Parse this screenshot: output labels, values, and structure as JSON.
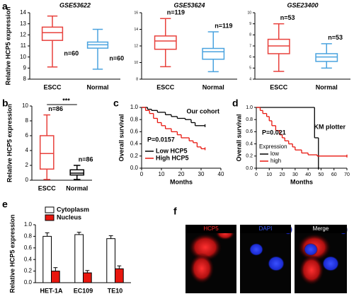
{
  "chart_data": [
    {
      "panel": "a",
      "type": "box",
      "title": "GSE53622",
      "ylabel": "Relative HCP5 expression",
      "categories": [
        "ESCC",
        "Normal"
      ],
      "colors": [
        "#e8413c",
        "#4aa3df"
      ],
      "boxes": [
        {
          "min": 9.1,
          "q1": 11.5,
          "median": 12.2,
          "q3": 12.7,
          "max": 13.7
        },
        {
          "min": 8.9,
          "q1": 10.8,
          "median": 11.1,
          "q3": 11.35,
          "max": 12.5
        }
      ],
      "n_labels": [
        "n=60",
        "n=60"
      ],
      "ylim": [
        8,
        14
      ],
      "yticks": [
        8,
        9,
        10,
        11,
        12,
        13,
        14
      ]
    },
    {
      "type": "box",
      "title": "GSE53624",
      "categories": [
        "ESCC",
        "Normal"
      ],
      "colors": [
        "#e8413c",
        "#4aa3df"
      ],
      "boxes": [
        {
          "min": 9.5,
          "q1": 11.6,
          "median": 12.6,
          "q3": 13.2,
          "max": 15.3
        },
        {
          "min": 8.9,
          "q1": 10.4,
          "median": 11.3,
          "q3": 11.7,
          "max": 13.7
        }
      ],
      "n_labels": [
        "n=119",
        "n=119"
      ],
      "ylim": [
        8,
        16
      ],
      "yticks": [
        8,
        10,
        12,
        14,
        16
      ]
    },
    {
      "type": "box",
      "title": "GSE23400",
      "categories": [
        "ESCC",
        "Normal"
      ],
      "colors": [
        "#e8413c",
        "#4aa3df"
      ],
      "boxes": [
        {
          "min": 4.7,
          "q1": 6.3,
          "median": 7.0,
          "q3": 7.6,
          "max": 9.0
        },
        {
          "min": 5.0,
          "q1": 5.6,
          "median": 6.0,
          "q3": 6.3,
          "max": 7.2
        }
      ],
      "n_labels": [
        "n=53",
        "n=53"
      ],
      "ylim": [
        4,
        10
      ],
      "yticks": [
        4,
        5,
        6,
        7,
        8,
        9,
        10
      ]
    },
    {
      "panel": "b",
      "type": "box",
      "ylabel": "Relative HCP5 expression",
      "categories": [
        "ESCC",
        "Normal"
      ],
      "colors": [
        "#e8413c",
        "#000000"
      ],
      "boxes": [
        {
          "min": 0.1,
          "q1": 1.5,
          "median": 3.6,
          "q3": 6.0,
          "max": 8.8
        },
        {
          "min": 0.1,
          "q1": 0.7,
          "median": 0.95,
          "q3": 1.4,
          "max": 2.0
        }
      ],
      "n_labels": [
        "n=86",
        "n=86"
      ],
      "significance": "***",
      "ylim": [
        0,
        10
      ],
      "yticks": [
        0,
        2,
        4,
        6,
        8,
        10
      ]
    },
    {
      "panel": "c",
      "type": "km",
      "ylabel": "Overall survival",
      "xlabel": "Months",
      "annotations": [
        "Our cohort",
        "P=0.0157"
      ],
      "series": [
        {
          "name": "Low HCP5",
          "color": "#000000",
          "x": [
            0,
            3,
            5,
            8,
            12,
            15,
            18,
            22,
            25,
            27,
            32
          ],
          "values": [
            1,
            0.97,
            0.95,
            0.92,
            0.88,
            0.85,
            0.82,
            0.8,
            0.75,
            0.7,
            0.7
          ]
        },
        {
          "name": "High HCP5",
          "color": "#e8170f",
          "x": [
            0,
            2,
            4,
            6,
            8,
            10,
            12,
            15,
            18,
            20,
            24,
            26,
            28,
            30,
            32
          ],
          "values": [
            1,
            0.95,
            0.9,
            0.82,
            0.75,
            0.7,
            0.65,
            0.6,
            0.55,
            0.5,
            0.45,
            0.42,
            0.35,
            0.32,
            0.32
          ]
        }
      ],
      "xlim": [
        0,
        40
      ],
      "xticks": [
        0,
        10,
        20,
        30,
        40
      ],
      "ylim": [
        0,
        1
      ],
      "yticks": [
        {
          "value": 0,
          "label": "0.0"
        },
        0.2,
        0.4,
        0.6,
        0.8,
        {
          "value": 1,
          "label": "1.0"
        }
      ]
    },
    {
      "panel": "d",
      "type": "km",
      "ylabel": "Overall survival",
      "xlabel": "Months",
      "annotations": [
        "KM plotter",
        "P=0.021"
      ],
      "legend_title": "Expression",
      "series": [
        {
          "name": "low",
          "color": "#000000",
          "x": [
            0,
            45,
            48
          ],
          "values": [
            1,
            0.5,
            0
          ]
        },
        {
          "name": "high",
          "color": "#e8170f",
          "x": [
            0,
            3,
            5,
            8,
            10,
            12,
            15,
            18,
            20,
            22,
            25,
            28,
            30,
            35,
            40,
            47,
            70
          ],
          "values": [
            1,
            0.95,
            0.9,
            0.85,
            0.78,
            0.7,
            0.62,
            0.55,
            0.5,
            0.45,
            0.4,
            0.35,
            0.3,
            0.25,
            0.22,
            0.2,
            0.2
          ]
        }
      ],
      "xlim": [
        0,
        70
      ],
      "xticks": [
        0,
        10,
        20,
        30,
        40,
        50,
        60,
        70
      ],
      "ylim": [
        0,
        1
      ],
      "yticks": [
        {
          "value": 0,
          "label": "0.0"
        },
        0.2,
        0.4,
        0.6,
        0.8,
        {
          "value": 1,
          "label": "1.0"
        }
      ]
    },
    {
      "panel": "e",
      "type": "bar",
      "ylabel": "Relative HCP5 expression",
      "categories": [
        "HET-1A",
        "EC109",
        "TE10"
      ],
      "series": [
        {
          "name": "Cytoplasm",
          "color": "#ffffff",
          "values": [
            0.8,
            0.83,
            0.76
          ],
          "errors": [
            0.06,
            0.04,
            0.05
          ]
        },
        {
          "name": "Nucleus",
          "color": "#e8170f",
          "values": [
            0.2,
            0.17,
            0.24
          ],
          "errors": [
            0.06,
            0.04,
            0.05
          ]
        }
      ],
      "ylim": [
        0,
        1
      ],
      "yticks": [
        {
          "value": 0,
          "label": "0.0"
        },
        0.2,
        0.4,
        0.6,
        0.8,
        {
          "value": 1,
          "label": "1.0"
        }
      ]
    }
  ],
  "figure_f": {
    "panel": "f",
    "labels": [
      "HCP5",
      "DAPI",
      "Merge"
    ]
  }
}
